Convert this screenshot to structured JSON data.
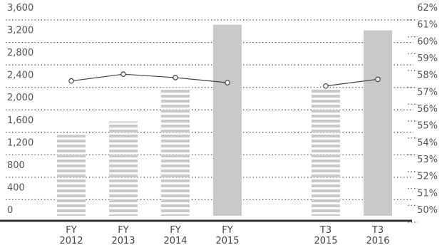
{
  "chart_data": {
    "type": "bar",
    "categories": [
      {
        "line1": "FY",
        "line2": "2012"
      },
      {
        "line1": "FY",
        "line2": "2013"
      },
      {
        "line1": "FY",
        "line2": "2014"
      },
      {
        "line1": "FY",
        "line2": "2015"
      },
      {
        "line1": "T3",
        "line2": "2015"
      },
      {
        "line1": "T3",
        "line2": "2016"
      }
    ],
    "category_groups": [
      [
        0,
        1,
        2,
        3
      ],
      [
        4,
        5
      ]
    ],
    "series": [
      {
        "type": "bar",
        "axis": "left",
        "values": [
          1440,
          1680,
          2290,
          3400,
          2280,
          3300
        ],
        "style": [
          "striped",
          "striped",
          "striped",
          "solid",
          "striped",
          "solid"
        ]
      },
      {
        "type": "line",
        "axis": "right",
        "values": [
          58.0,
          58.4,
          58.2,
          57.9,
          57.7,
          58.1
        ]
      }
    ],
    "y_left": {
      "min": 0,
      "max": 3600,
      "ticks": [
        "0",
        "400",
        "800",
        "1,200",
        "1,600",
        "2,000",
        "2,400",
        "2,800",
        "3,200",
        "3,600"
      ]
    },
    "y_right": {
      "min": 50,
      "max": 62,
      "ticks": [
        "50%",
        "51%",
        "52%",
        "53%",
        "54%",
        "55%",
        "56%",
        "57%",
        "58%",
        "59%",
        "60%",
        "61%",
        "62%"
      ]
    },
    "title": "",
    "grid": true,
    "legend": "none",
    "colors": {
      "bar_striped": "#c9c9c9",
      "bar_solid": "#c9c9c9",
      "line": "#444444",
      "grid": "#555555",
      "axis": "#333333"
    }
  }
}
